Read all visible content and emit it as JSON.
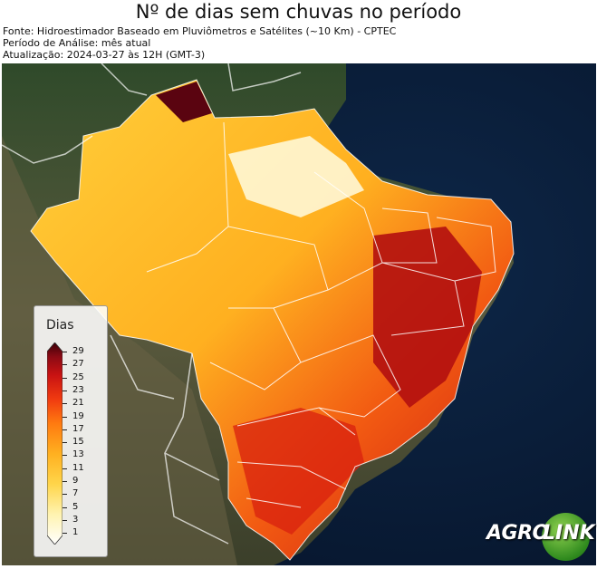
{
  "header": {
    "title": "Nº de dias sem chuvas no período",
    "source": "Fonte: Hidroestimador Baseado em Pluviômetros e Satélites (~10 Km) - CPTEC",
    "period": "Período de Análise: mês atual",
    "updated": "Atualização: 2024-03-27 às 12H (GMT-3)"
  },
  "legend": {
    "title": "Dias",
    "ticks": [
      "29",
      "27",
      "25",
      "23",
      "21",
      "19",
      "17",
      "15",
      "13",
      "11",
      "9",
      "7",
      "5",
      "3",
      "1"
    ],
    "colors": [
      "#ffffff",
      "#fff3b0",
      "#ffd54a",
      "#ffb020",
      "#ff7a10",
      "#f03a10",
      "#c81212",
      "#8b0a14",
      "#3a0008"
    ]
  },
  "logo": {
    "part1": "AGRO",
    "part2": "LINK"
  },
  "colors": {
    "ocean": "#0b1d33",
    "land": "#4a4a36",
    "border": "#ffffff"
  }
}
